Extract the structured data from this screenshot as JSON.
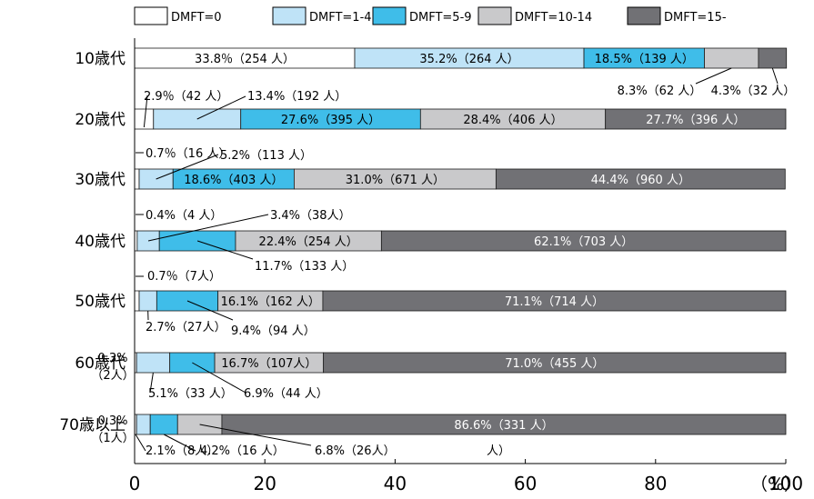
{
  "chart_data": {
    "type": "bar",
    "orientation": "horizontal",
    "stacked": true,
    "categories": [
      "10歳代",
      "20歳代",
      "30歳代",
      "40歳代",
      "50歳代",
      "60歳代",
      "70歳以上"
    ],
    "series": [
      {
        "name": "DMFT=0",
        "color": "#ffffff",
        "values": [
          33.8,
          2.9,
          0.7,
          0.4,
          0.7,
          0.3,
          0.3
        ]
      },
      {
        "name": "DMFT=1-4",
        "color": "#bfe3f7",
        "values": [
          35.2,
          13.4,
          5.2,
          3.4,
          2.7,
          5.1,
          2.1
        ]
      },
      {
        "name": "DMFT=5-9",
        "color": "#3fbde9",
        "values": [
          18.5,
          27.6,
          18.6,
          11.7,
          9.4,
          6.9,
          4.2
        ]
      },
      {
        "name": "DMFT=10-14",
        "color": "#c9c9cb",
        "values": [
          8.3,
          28.4,
          31.0,
          22.4,
          16.1,
          16.7,
          6.8
        ]
      },
      {
        "name": "DMFT=15-",
        "color": "#717175",
        "values": [
          4.3,
          27.7,
          44.4,
          62.1,
          71.1,
          71.0,
          86.6
        ]
      }
    ],
    "xlim": [
      0,
      100
    ],
    "xticks": [
      "0",
      "20",
      "40",
      "60",
      "80",
      "100"
    ],
    "xunit": "（%）",
    "legend_position": "top",
    "annotations": [
      [
        "33.8％（254 人）",
        "35.2%（264 人）",
        "18.5%（139 人）",
        "8.3%（62 人）",
        "4.3%（32 人）"
      ],
      [
        "2.9％（42 人）",
        "13.4%（192 人）",
        "27.6%（395 人）",
        "28.4%（406 人）",
        "27.7%（396 人）"
      ],
      [
        "0.7％（16 人）",
        "5.2%（113 人）",
        "18.6%（403 人）",
        "31.0%（671 人）",
        "44.4%（960 人）"
      ],
      [
        "0.4%（4 人）",
        "3.4%（38人）",
        "11.7%（133 人）",
        "22.4%（254 人）",
        "62.1%（703 人）"
      ],
      [
        "0.7％（7人）",
        "2.7%（27人）",
        "9.4%（94 人）",
        "16.1%（162 人）",
        "71.1%（714 人）"
      ],
      [
        "0.3%\n（2人）",
        "5.1%（33 人）",
        "6.9%（44 人）",
        "16.7%（107人）",
        "71.0%（455 人）"
      ],
      [
        "0.3%\n（1人）",
        "2.1%（8人）",
        "4.2%（16 人）",
        "6.8%（26人）",
        "86.6%（331 人）"
      ]
    ],
    "extra_text": "人）"
  }
}
